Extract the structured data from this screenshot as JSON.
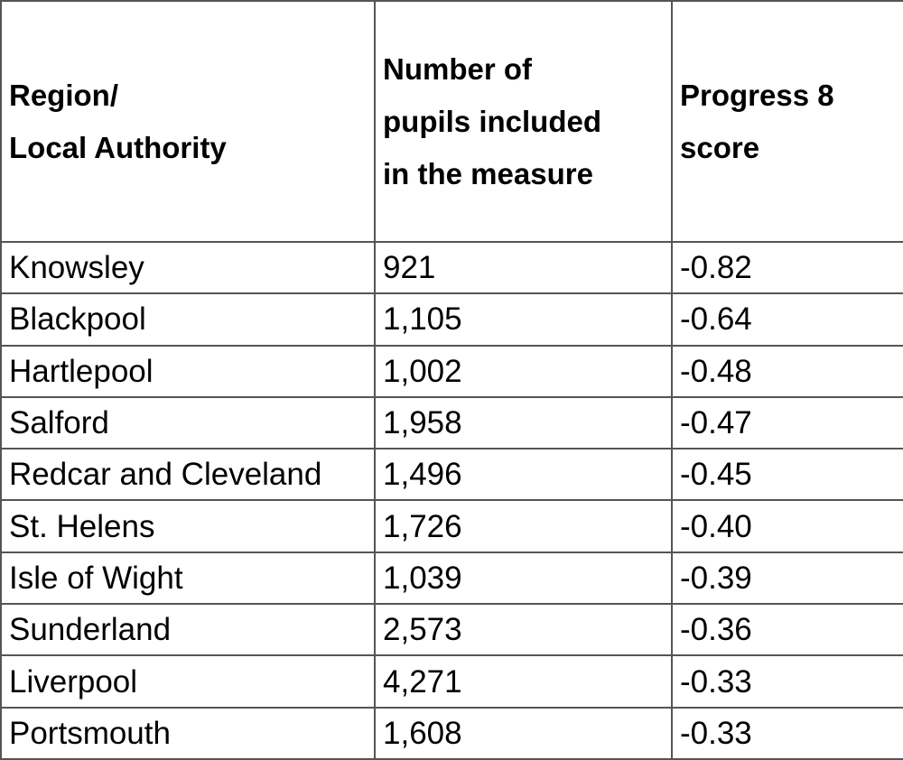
{
  "table": {
    "headers": [
      [
        "Region/",
        "Local Authority"
      ],
      [
        "Number of",
        "pupils included",
        "in the measure"
      ],
      [
        "Progress 8",
        "score"
      ]
    ],
    "rows": [
      [
        "Knowsley",
        "921",
        "-0.82"
      ],
      [
        "Blackpool",
        "1,105",
        "-0.64"
      ],
      [
        "Hartlepool",
        "1,002",
        "-0.48"
      ],
      [
        "Salford",
        "1,958",
        "-0.47"
      ],
      [
        "Redcar and Cleveland",
        "1,496",
        "-0.45"
      ],
      [
        "St. Helens",
        "1,726",
        "-0.40"
      ],
      [
        "Isle of Wight",
        "1,039",
        "-0.39"
      ],
      [
        "Sunderland",
        "2,573",
        "-0.36"
      ],
      [
        "Liverpool",
        "4,271",
        "-0.33"
      ],
      [
        "Portsmouth",
        "1,608",
        "-0.33"
      ]
    ]
  }
}
